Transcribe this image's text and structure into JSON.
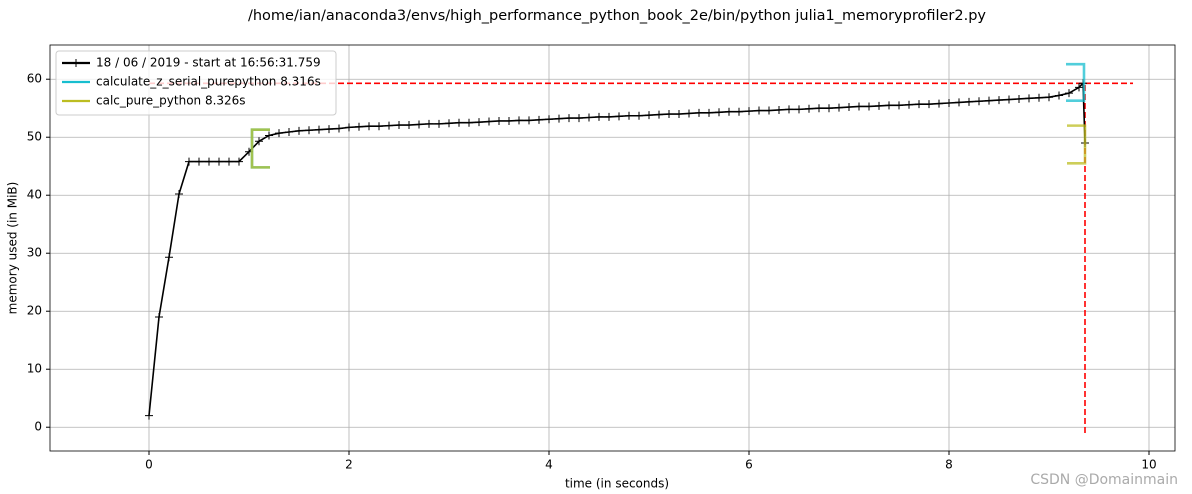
{
  "chart_data": {
    "type": "line",
    "title": "/home/ian/anaconda3/envs/high_performance_python_book_2e/bin/python julia1_memoryprofiler2.py",
    "xlabel": "time (in seconds)",
    "ylabel": "memory used (in MiB)",
    "xlim": [
      -0.99,
      10.26
    ],
    "ylim": [
      -4.1,
      65.9
    ],
    "xticks": [
      0,
      2,
      4,
      6,
      8,
      10
    ],
    "yticks": [
      0,
      10,
      20,
      30,
      40,
      50,
      60
    ],
    "grid": true,
    "legend": "upper left",
    "x": [
      0,
      0.1,
      0.2,
      0.3,
      0.4,
      0.5,
      0.6,
      0.7,
      0.8,
      0.9,
      1.0,
      1.1,
      1.2,
      1.3,
      1.4,
      1.5,
      1.6,
      1.7,
      1.8,
      1.9,
      2.0,
      2.1,
      2.2,
      2.3,
      2.4,
      2.5,
      2.6,
      2.7,
      2.8,
      2.9,
      3.0,
      3.1,
      3.2,
      3.3,
      3.4,
      3.5,
      3.6,
      3.7,
      3.8,
      3.9,
      4.0,
      4.1,
      4.2,
      4.3,
      4.4,
      4.5,
      4.6,
      4.7,
      4.8,
      4.9,
      5.0,
      5.1,
      5.2,
      5.3,
      5.4,
      5.5,
      5.6,
      5.7,
      5.8,
      5.9,
      6.0,
      6.1,
      6.2,
      6.3,
      6.4,
      6.5,
      6.6,
      6.7,
      6.8,
      6.9,
      7.0,
      7.1,
      7.2,
      7.3,
      7.4,
      7.5,
      7.6,
      7.7,
      7.8,
      7.9,
      8.0,
      8.1,
      8.2,
      8.3,
      8.4,
      8.5,
      8.6,
      8.7,
      8.8,
      8.9,
      9.0,
      9.1,
      9.2,
      9.3,
      9.34,
      9.36
    ],
    "series": [
      {
        "name": "18 / 06 / 2019 - start at 16:56:31.759",
        "color": "#000000",
        "values": [
          2.0,
          19.0,
          29.3,
          40.2,
          45.8,
          45.8,
          45.8,
          45.8,
          45.8,
          45.8,
          47.5,
          49.3,
          50.3,
          50.7,
          50.9,
          51.1,
          51.2,
          51.3,
          51.4,
          51.5,
          51.7,
          51.8,
          51.9,
          51.9,
          52.0,
          52.1,
          52.1,
          52.2,
          52.3,
          52.3,
          52.4,
          52.5,
          52.5,
          52.6,
          52.7,
          52.8,
          52.8,
          52.9,
          52.9,
          53.0,
          53.1,
          53.2,
          53.3,
          53.3,
          53.4,
          53.5,
          53.5,
          53.6,
          53.7,
          53.7,
          53.8,
          53.9,
          54.0,
          54.0,
          54.1,
          54.2,
          54.2,
          54.3,
          54.4,
          54.4,
          54.5,
          54.6,
          54.6,
          54.7,
          54.8,
          54.8,
          54.9,
          55.0,
          55.0,
          55.1,
          55.2,
          55.3,
          55.3,
          55.4,
          55.5,
          55.5,
          55.6,
          55.7,
          55.7,
          55.8,
          55.9,
          56.0,
          56.1,
          56.2,
          56.3,
          56.4,
          56.5,
          56.6,
          56.7,
          56.8,
          56.9,
          57.2,
          57.6,
          58.6,
          59.3,
          49.0
        ]
      }
    ],
    "functions": [
      {
        "name": "calculate_z_serial_purepython 8.316s",
        "color": "#17becf",
        "start": 1.03,
        "end": 9.35,
        "bracket_width": 0.18,
        "start_range": [
          44.8,
          51.3
        ],
        "end_range": [
          56.3,
          62.6
        ]
      },
      {
        "name": "calc_pure_python 8.326s",
        "color": "#bcbd22",
        "start": 1.03,
        "end": 9.36,
        "bracket_width": 0.18,
        "start_range": [
          44.8,
          51.3
        ],
        "end_range": [
          45.5,
          52.0
        ]
      }
    ],
    "max_hline": {
      "y": 59.3,
      "x_from": 0,
      "x_to": 9.84,
      "color": "#ff0000"
    },
    "max_vline": {
      "x": 9.36,
      "y_from": -1,
      "y_to": 59.3,
      "color": "#ff0000"
    },
    "watermark": "CSDN @Domainmain"
  }
}
